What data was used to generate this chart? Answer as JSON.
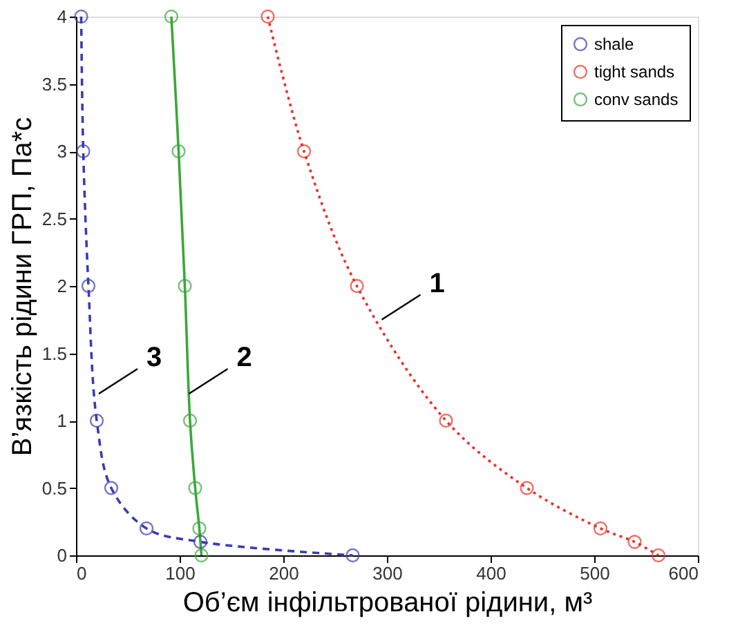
{
  "chart_data": {
    "type": "line",
    "xlabel": "Об’єм інфільтрованої рідини, м³",
    "ylabel": "В’язкість рідини ГРП, Па*с",
    "series": [
      {
        "name": "shale",
        "color": "#3b3bb0",
        "line_style": "dashed",
        "x": [
          5,
          7,
          12,
          20,
          34,
          68,
          120,
          267
        ],
        "values": [
          4,
          3,
          2,
          1,
          0.5,
          0.2,
          0.1,
          0
        ]
      },
      {
        "name": "tight sands",
        "color": "#e8322a",
        "line_style": "dotted",
        "x": [
          185,
          220,
          271,
          357,
          435,
          506,
          539,
          562
        ],
        "values": [
          4,
          3,
          2,
          1,
          0.5,
          0.2,
          0.1,
          0
        ]
      },
      {
        "name": "conv sands",
        "color": "#3aa83a",
        "line_style": "solid",
        "x": [
          92,
          99,
          105,
          110,
          115,
          119,
          121
        ],
        "values": [
          4,
          3,
          2,
          1,
          0.5,
          0.2,
          0
        ]
      }
    ],
    "marker": "circle",
    "xlim": [
      0,
      600
    ],
    "xticks": [
      0,
      100,
      200,
      300,
      400,
      500,
      600
    ],
    "ylim": [
      0,
      4
    ],
    "yticks": [
      0,
      0.5,
      1,
      1.5,
      2,
      2.5,
      3,
      3.5,
      4
    ],
    "grid": false,
    "legend": "top right",
    "annotations": [
      {
        "text": "1",
        "x": 295,
        "y": 1.75
      },
      {
        "text": "2",
        "x": 109,
        "y": 1.2
      },
      {
        "text": "3",
        "x": 22,
        "y": 1.2
      }
    ]
  }
}
